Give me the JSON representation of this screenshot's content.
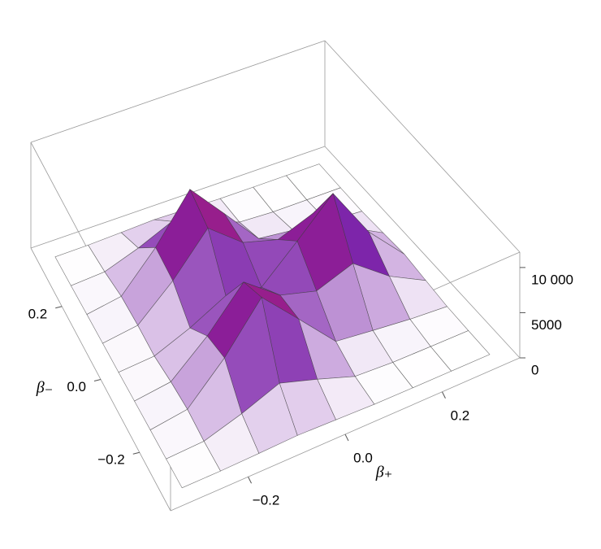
{
  "chart_data": {
    "type": "surface",
    "xlabel": "β₊",
    "ylabel": "β₋",
    "x": [
      -0.32,
      -0.24,
      -0.16,
      -0.08,
      0,
      0.08,
      0.16,
      0.24,
      0.32
    ],
    "y": [
      -0.32,
      -0.24,
      -0.16,
      -0.08,
      0,
      0.08,
      0.16,
      0.24,
      0.32
    ],
    "z": [
      [
        1,
        16,
        125,
        263,
        148,
        23,
        1,
        0,
        0
      ],
      [
        7,
        189,
        1460,
        3056,
        1720,
        263,
        40,
        13,
        2
      ],
      [
        21,
        594,
        4578,
        9576,
        5467,
        1288,
        793,
        335,
        40
      ],
      [
        18,
        512,
        3945,
        8278,
        5192,
        4023,
        5435,
        2386,
        284
      ],
      [
        8,
        232,
        1787,
        3785,
        3152,
        6694,
        10408,
        4589,
        546
      ],
      [
        18,
        512,
        3945,
        8278,
        5192,
        4023,
        5435,
        2386,
        284
      ],
      [
        21,
        594,
        4578,
        9576,
        5467,
        1288,
        793,
        335,
        40
      ],
      [
        7,
        189,
        1460,
        3056,
        1720,
        263,
        40,
        13,
        2
      ],
      [
        1,
        16,
        125,
        263,
        148,
        23,
        1,
        0,
        0
      ]
    ],
    "xlim": [
      -0.36,
      0.36
    ],
    "ylim": [
      -0.36,
      0.36
    ],
    "zlim": [
      0,
      11700
    ],
    "xticks": [
      {
        "value": -0.2,
        "label": "−0.2"
      },
      {
        "value": 0,
        "label": "0.0"
      },
      0.2
    ],
    "yticks": [
      {
        "value": -0.2,
        "label": "−0.2"
      },
      {
        "value": 0,
        "label": "0.0"
      },
      0.2
    ],
    "zticks": [
      0,
      5000,
      {
        "value": 10000,
        "label": "10 000"
      }
    ],
    "colors": [
      "#ffffff",
      "#7a1fa8",
      "#ff1a2a"
    ],
    "mesh_color": "#3a3a3a",
    "box_color": "#9a9a9a"
  }
}
